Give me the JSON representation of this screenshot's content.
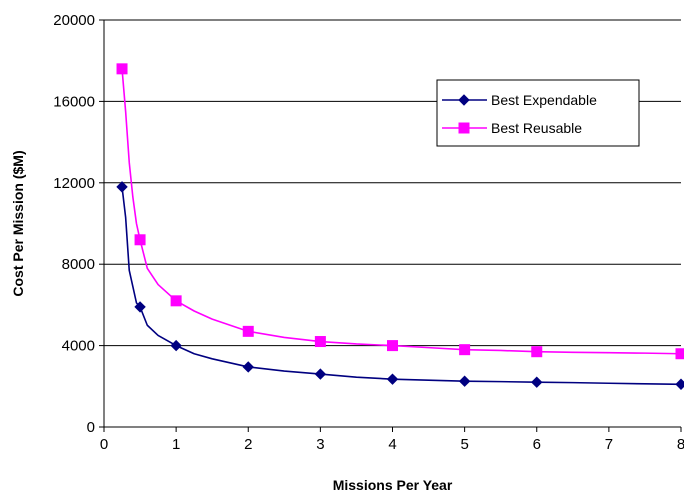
{
  "chart_data": {
    "type": "line",
    "title": "",
    "xlabel": "Missions Per Year",
    "ylabel": "Cost Per Mission ($M)",
    "xlim": [
      0,
      8
    ],
    "ylim": [
      0,
      20000
    ],
    "x_ticks": [
      0,
      1,
      2,
      3,
      4,
      5,
      6,
      7,
      8
    ],
    "y_ticks": [
      0,
      4000,
      8000,
      12000,
      16000,
      20000
    ],
    "y_tick_labels": [
      "0",
      "4000",
      "8000",
      "12000",
      "16000",
      "20000"
    ],
    "x_tick_labels": [
      "0",
      "1",
      "2",
      "3",
      "4",
      "5",
      "6",
      "7",
      "8"
    ],
    "grid": "horizontal major gridlines",
    "legend_position": "upper-right, inside plot",
    "series": [
      {
        "name": "Best Expendable",
        "color": "#000080",
        "marker": "diamond",
        "x": [
          0.25,
          0.5,
          1,
          2,
          3,
          4,
          5,
          6,
          8
        ],
        "y": [
          11800,
          5900,
          4000,
          2950,
          2600,
          2350,
          2250,
          2200,
          2100
        ],
        "curve_x": [
          0.25,
          0.3,
          0.35,
          0.4,
          0.45,
          0.5,
          0.6,
          0.75,
          1,
          1.25,
          1.5,
          2,
          2.5,
          3,
          3.5,
          4,
          4.5,
          5,
          5.5,
          6,
          6.5,
          7,
          7.5,
          8
        ],
        "curve_y": [
          11800,
          10300,
          7700,
          6900,
          6100,
          5900,
          5000,
          4500,
          4000,
          3600,
          3350,
          2950,
          2750,
          2600,
          2450,
          2350,
          2300,
          2250,
          2230,
          2200,
          2180,
          2150,
          2120,
          2100
        ]
      },
      {
        "name": "Best Reusable",
        "color": "#ff00ff",
        "marker": "square",
        "x": [
          0.25,
          0.5,
          1,
          2,
          3,
          4,
          5,
          6,
          8
        ],
        "y": [
          17600,
          9200,
          6200,
          4700,
          4200,
          4000,
          3800,
          3700,
          3600
        ],
        "curve_x": [
          0.25,
          0.3,
          0.35,
          0.4,
          0.45,
          0.5,
          0.6,
          0.75,
          1,
          1.25,
          1.5,
          2,
          2.5,
          3,
          3.5,
          4,
          4.5,
          5,
          5.5,
          6,
          6.5,
          7,
          7.5,
          8
        ],
        "curve_y": [
          17600,
          15500,
          13000,
          11300,
          10000,
          9200,
          7800,
          7000,
          6200,
          5700,
          5300,
          4700,
          4400,
          4200,
          4080,
          4000,
          3900,
          3800,
          3760,
          3700,
          3670,
          3650,
          3630,
          3600
        ]
      }
    ]
  }
}
